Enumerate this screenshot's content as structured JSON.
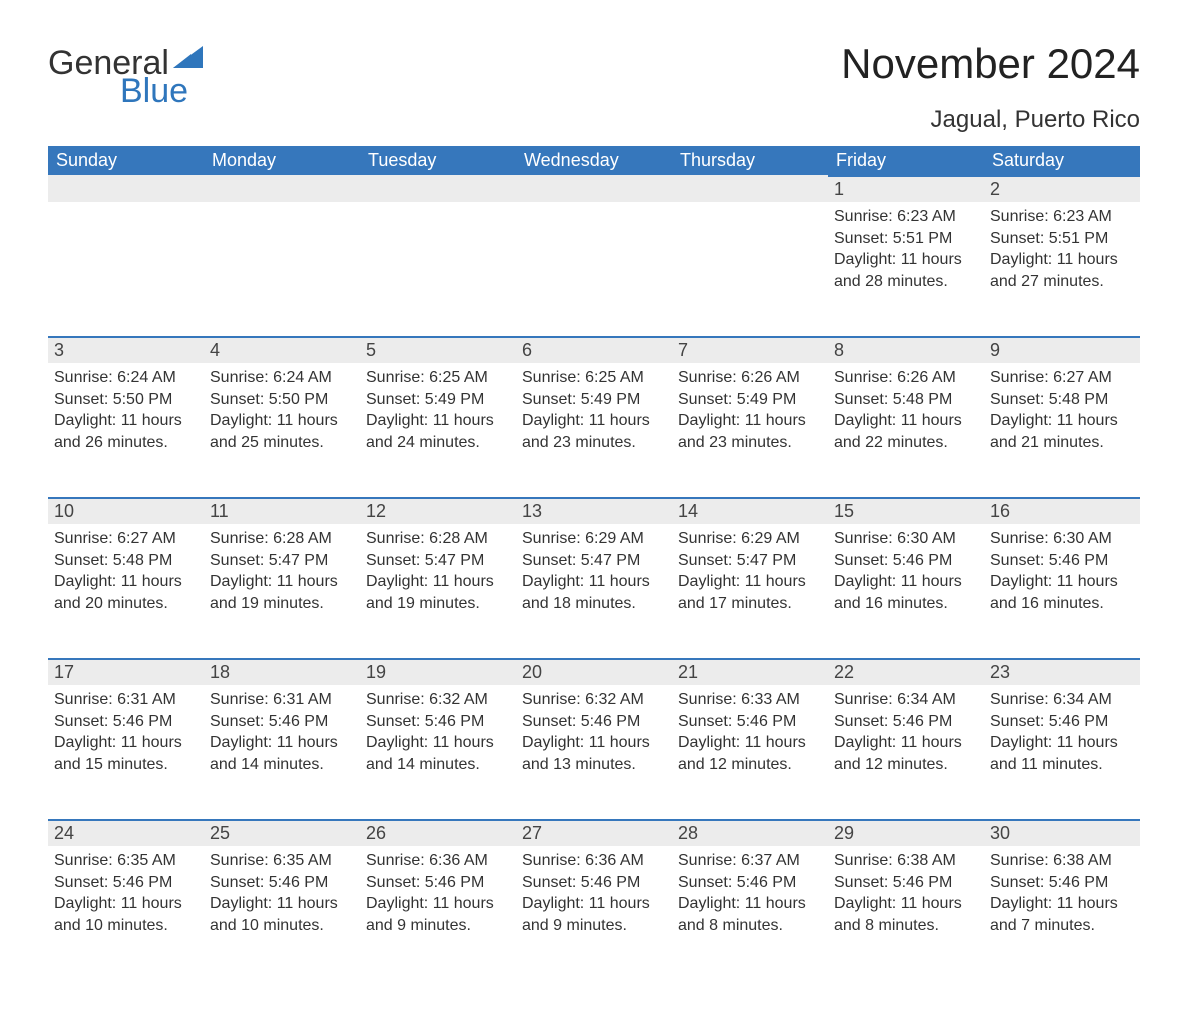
{
  "brand": {
    "line1": "General",
    "line2": "Blue",
    "accent_color": "#2f76bc"
  },
  "title": "November 2024",
  "location": "Jagual, Puerto Rico",
  "colors": {
    "header_bg": "#3677bc",
    "header_text": "#ffffff",
    "daynum_bg": "#ececec",
    "daynum_border": "#3677bc",
    "body_text": "#333333",
    "background": "#ffffff"
  },
  "typography": {
    "title_fontsize": 42,
    "location_fontsize": 24,
    "header_fontsize": 18,
    "daynum_fontsize": 18,
    "body_fontsize": 16
  },
  "weekdays": [
    "Sunday",
    "Monday",
    "Tuesday",
    "Wednesday",
    "Thursday",
    "Friday",
    "Saturday"
  ],
  "weeks": [
    [
      null,
      null,
      null,
      null,
      null,
      {
        "n": "1",
        "sr": "Sunrise: 6:23 AM",
        "ss": "Sunset: 5:51 PM",
        "dl": "Daylight: 11 hours and 28 minutes."
      },
      {
        "n": "2",
        "sr": "Sunrise: 6:23 AM",
        "ss": "Sunset: 5:51 PM",
        "dl": "Daylight: 11 hours and 27 minutes."
      }
    ],
    [
      {
        "n": "3",
        "sr": "Sunrise: 6:24 AM",
        "ss": "Sunset: 5:50 PM",
        "dl": "Daylight: 11 hours and 26 minutes."
      },
      {
        "n": "4",
        "sr": "Sunrise: 6:24 AM",
        "ss": "Sunset: 5:50 PM",
        "dl": "Daylight: 11 hours and 25 minutes."
      },
      {
        "n": "5",
        "sr": "Sunrise: 6:25 AM",
        "ss": "Sunset: 5:49 PM",
        "dl": "Daylight: 11 hours and 24 minutes."
      },
      {
        "n": "6",
        "sr": "Sunrise: 6:25 AM",
        "ss": "Sunset: 5:49 PM",
        "dl": "Daylight: 11 hours and 23 minutes."
      },
      {
        "n": "7",
        "sr": "Sunrise: 6:26 AM",
        "ss": "Sunset: 5:49 PM",
        "dl": "Daylight: 11 hours and 23 minutes."
      },
      {
        "n": "8",
        "sr": "Sunrise: 6:26 AM",
        "ss": "Sunset: 5:48 PM",
        "dl": "Daylight: 11 hours and 22 minutes."
      },
      {
        "n": "9",
        "sr": "Sunrise: 6:27 AM",
        "ss": "Sunset: 5:48 PM",
        "dl": "Daylight: 11 hours and 21 minutes."
      }
    ],
    [
      {
        "n": "10",
        "sr": "Sunrise: 6:27 AM",
        "ss": "Sunset: 5:48 PM",
        "dl": "Daylight: 11 hours and 20 minutes."
      },
      {
        "n": "11",
        "sr": "Sunrise: 6:28 AM",
        "ss": "Sunset: 5:47 PM",
        "dl": "Daylight: 11 hours and 19 minutes."
      },
      {
        "n": "12",
        "sr": "Sunrise: 6:28 AM",
        "ss": "Sunset: 5:47 PM",
        "dl": "Daylight: 11 hours and 19 minutes."
      },
      {
        "n": "13",
        "sr": "Sunrise: 6:29 AM",
        "ss": "Sunset: 5:47 PM",
        "dl": "Daylight: 11 hours and 18 minutes."
      },
      {
        "n": "14",
        "sr": "Sunrise: 6:29 AM",
        "ss": "Sunset: 5:47 PM",
        "dl": "Daylight: 11 hours and 17 minutes."
      },
      {
        "n": "15",
        "sr": "Sunrise: 6:30 AM",
        "ss": "Sunset: 5:46 PM",
        "dl": "Daylight: 11 hours and 16 minutes."
      },
      {
        "n": "16",
        "sr": "Sunrise: 6:30 AM",
        "ss": "Sunset: 5:46 PM",
        "dl": "Daylight: 11 hours and 16 minutes."
      }
    ],
    [
      {
        "n": "17",
        "sr": "Sunrise: 6:31 AM",
        "ss": "Sunset: 5:46 PM",
        "dl": "Daylight: 11 hours and 15 minutes."
      },
      {
        "n": "18",
        "sr": "Sunrise: 6:31 AM",
        "ss": "Sunset: 5:46 PM",
        "dl": "Daylight: 11 hours and 14 minutes."
      },
      {
        "n": "19",
        "sr": "Sunrise: 6:32 AM",
        "ss": "Sunset: 5:46 PM",
        "dl": "Daylight: 11 hours and 14 minutes."
      },
      {
        "n": "20",
        "sr": "Sunrise: 6:32 AM",
        "ss": "Sunset: 5:46 PM",
        "dl": "Daylight: 11 hours and 13 minutes."
      },
      {
        "n": "21",
        "sr": "Sunrise: 6:33 AM",
        "ss": "Sunset: 5:46 PM",
        "dl": "Daylight: 11 hours and 12 minutes."
      },
      {
        "n": "22",
        "sr": "Sunrise: 6:34 AM",
        "ss": "Sunset: 5:46 PM",
        "dl": "Daylight: 11 hours and 12 minutes."
      },
      {
        "n": "23",
        "sr": "Sunrise: 6:34 AM",
        "ss": "Sunset: 5:46 PM",
        "dl": "Daylight: 11 hours and 11 minutes."
      }
    ],
    [
      {
        "n": "24",
        "sr": "Sunrise: 6:35 AM",
        "ss": "Sunset: 5:46 PM",
        "dl": "Daylight: 11 hours and 10 minutes."
      },
      {
        "n": "25",
        "sr": "Sunrise: 6:35 AM",
        "ss": "Sunset: 5:46 PM",
        "dl": "Daylight: 11 hours and 10 minutes."
      },
      {
        "n": "26",
        "sr": "Sunrise: 6:36 AM",
        "ss": "Sunset: 5:46 PM",
        "dl": "Daylight: 11 hours and 9 minutes."
      },
      {
        "n": "27",
        "sr": "Sunrise: 6:36 AM",
        "ss": "Sunset: 5:46 PM",
        "dl": "Daylight: 11 hours and 9 minutes."
      },
      {
        "n": "28",
        "sr": "Sunrise: 6:37 AM",
        "ss": "Sunset: 5:46 PM",
        "dl": "Daylight: 11 hours and 8 minutes."
      },
      {
        "n": "29",
        "sr": "Sunrise: 6:38 AM",
        "ss": "Sunset: 5:46 PM",
        "dl": "Daylight: 11 hours and 8 minutes."
      },
      {
        "n": "30",
        "sr": "Sunrise: 6:38 AM",
        "ss": "Sunset: 5:46 PM",
        "dl": "Daylight: 11 hours and 7 minutes."
      }
    ]
  ]
}
